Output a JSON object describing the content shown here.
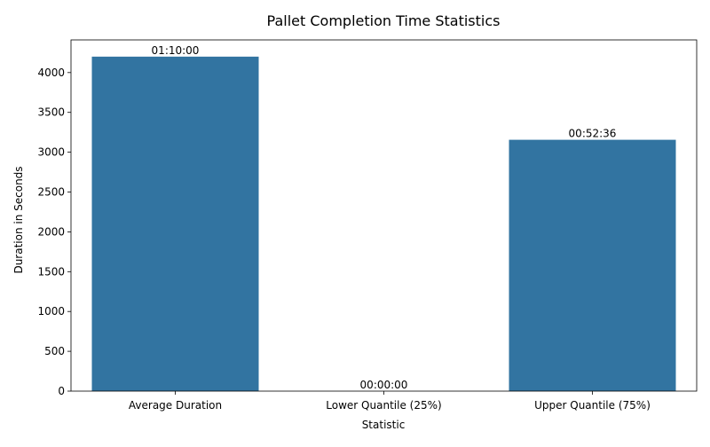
{
  "chart_data": {
    "type": "bar",
    "title": "Pallet Completion Time Statistics",
    "xlabel": "Statistic",
    "ylabel": "Duration in Seconds",
    "categories": [
      "Average Duration",
      "Lower Quantile (25%)",
      "Upper Quantile (75%)"
    ],
    "values": [
      4200,
      0,
      3156
    ],
    "data_labels": [
      "01:10:00",
      "00:00:00",
      "00:52:36"
    ],
    "ylim": [
      0,
      4410
    ],
    "yticks": [
      0,
      500,
      1000,
      1500,
      2000,
      2500,
      3000,
      3500,
      4000
    ],
    "grid": false,
    "bar_color": "#3274a1"
  }
}
